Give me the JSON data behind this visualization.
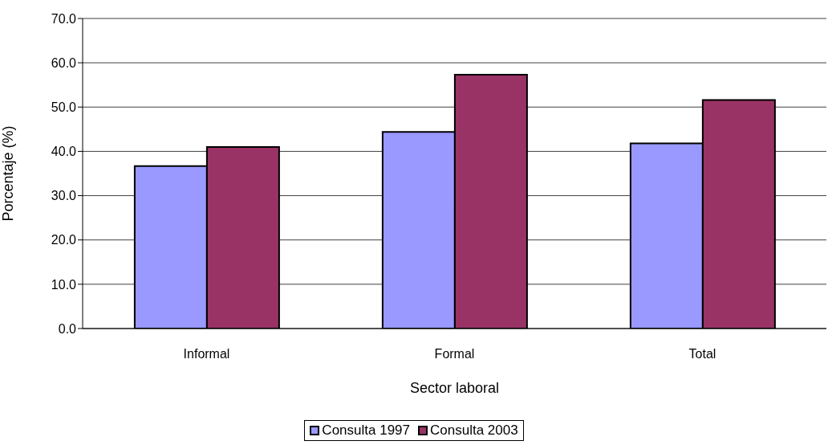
{
  "chart_data": {
    "type": "bar",
    "xlabel": "Sector laboral",
    "ylabel": "Porcentaje (%)",
    "categories": [
      "Informal",
      "Formal",
      "Total"
    ],
    "series": [
      {
        "name": "Consulta 1997",
        "color": "#9999ff",
        "values": [
          36.7,
          44.4,
          41.8
        ]
      },
      {
        "name": "Consulta 2003",
        "color": "#993366",
        "values": [
          41.0,
          57.3,
          51.6
        ]
      }
    ],
    "ylim": [
      0,
      70
    ],
    "yticks": [
      {
        "value": 0,
        "label": "0.0"
      },
      {
        "value": 10,
        "label": "10.0"
      },
      {
        "value": 20,
        "label": "20.0"
      },
      {
        "value": 30,
        "label": "30.0"
      },
      {
        "value": 40,
        "label": "40.0"
      },
      {
        "value": 50,
        "label": "50.0"
      },
      {
        "value": 60,
        "label": "60.0"
      },
      {
        "value": 70,
        "label": "70.0"
      }
    ],
    "grid": "y",
    "legend": "bottom"
  }
}
